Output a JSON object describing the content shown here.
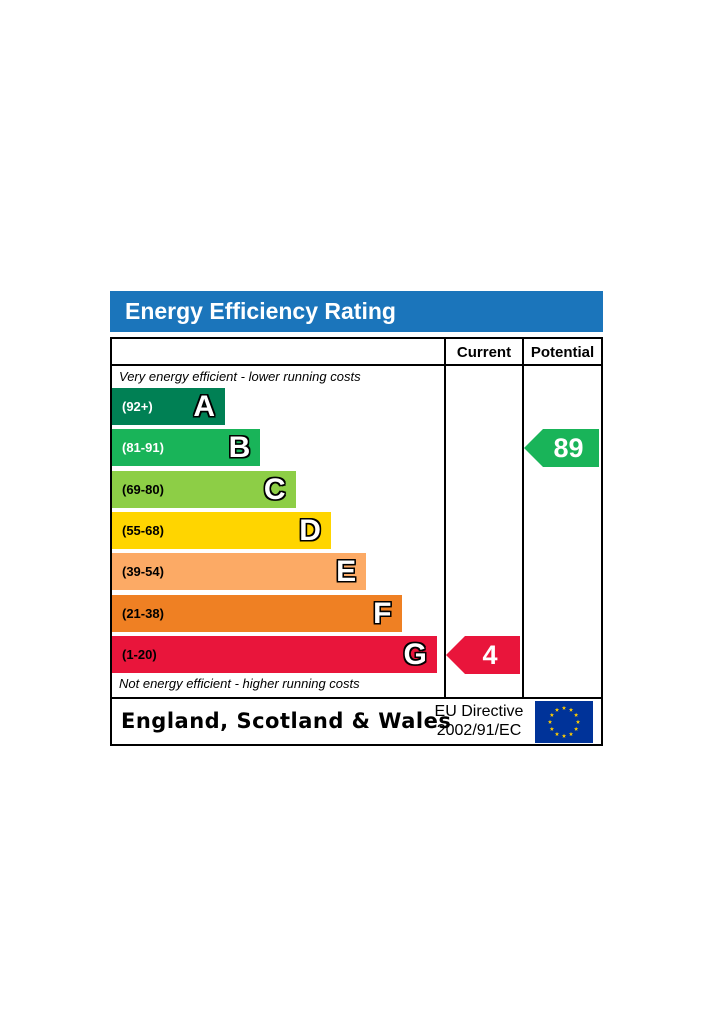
{
  "title": "Energy Efficiency Rating",
  "columns": {
    "current": "Current",
    "potential": "Potential"
  },
  "notes": {
    "top": "Very energy efficient - lower running costs",
    "bottom": "Not energy efficient - higher running costs"
  },
  "footer": {
    "region": "England, Scotland & Wales",
    "directive_line1": "EU Directive",
    "directive_line2": "2002/91/EC"
  },
  "chart_data": {
    "type": "bar",
    "categories": [
      "A",
      "B",
      "C",
      "D",
      "E",
      "F",
      "G"
    ],
    "bands": [
      {
        "letter": "A",
        "range": "(92+)",
        "min": 92,
        "max": 100,
        "color": "#008054"
      },
      {
        "letter": "B",
        "range": "(81-91)",
        "min": 81,
        "max": 91,
        "color": "#19b459"
      },
      {
        "letter": "C",
        "range": "(69-80)",
        "min": 69,
        "max": 80,
        "color": "#8dce46"
      },
      {
        "letter": "D",
        "range": "(55-68)",
        "min": 55,
        "max": 68,
        "color": "#ffd500"
      },
      {
        "letter": "E",
        "range": "(39-54)",
        "min": 39,
        "max": 54,
        "color": "#fcaa65"
      },
      {
        "letter": "F",
        "range": "(21-38)",
        "min": 21,
        "max": 38,
        "color": "#ef8023"
      },
      {
        "letter": "G",
        "range": "(1-20)",
        "min": 1,
        "max": 20,
        "color": "#e9153b"
      }
    ],
    "current": {
      "value": 4,
      "band": "G",
      "color": "#e9153b"
    },
    "potential": {
      "value": 89,
      "band": "B",
      "color": "#19b459"
    }
  }
}
